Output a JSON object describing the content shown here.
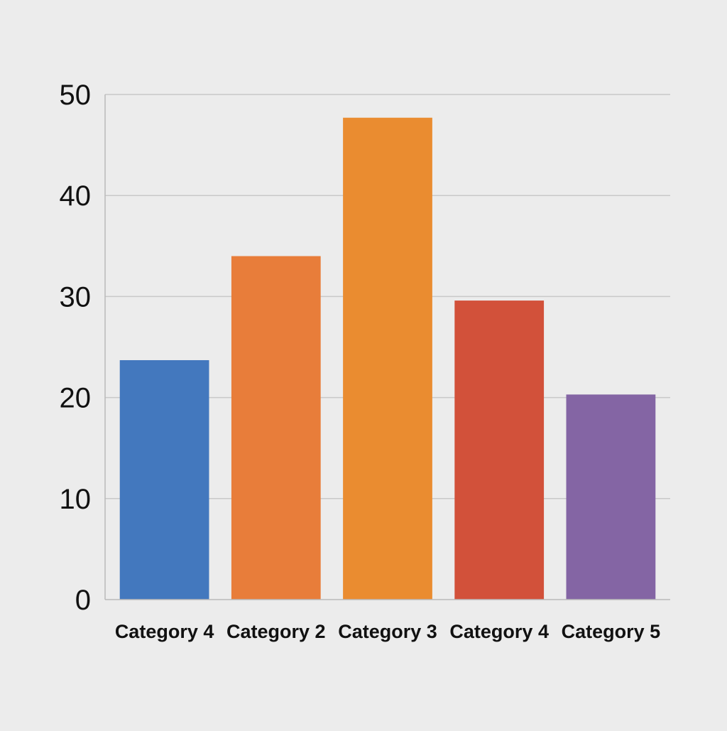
{
  "chart_data": {
    "type": "bar",
    "title": "",
    "xlabel": "",
    "ylabel": "",
    "categories": [
      "Category 4",
      "Category 2",
      "Category 3",
      "Category 4",
      "Category 5"
    ],
    "values": [
      23.7,
      34,
      47.7,
      29.6,
      20.3
    ],
    "colors": [
      "#4378be",
      "#e87d3a",
      "#ea8c30",
      "#d2513a",
      "#8465a4"
    ],
    "ylim": [
      0,
      50
    ],
    "yticks": [
      0,
      10,
      20,
      30,
      40,
      50
    ],
    "grid": true,
    "legend": "none"
  }
}
